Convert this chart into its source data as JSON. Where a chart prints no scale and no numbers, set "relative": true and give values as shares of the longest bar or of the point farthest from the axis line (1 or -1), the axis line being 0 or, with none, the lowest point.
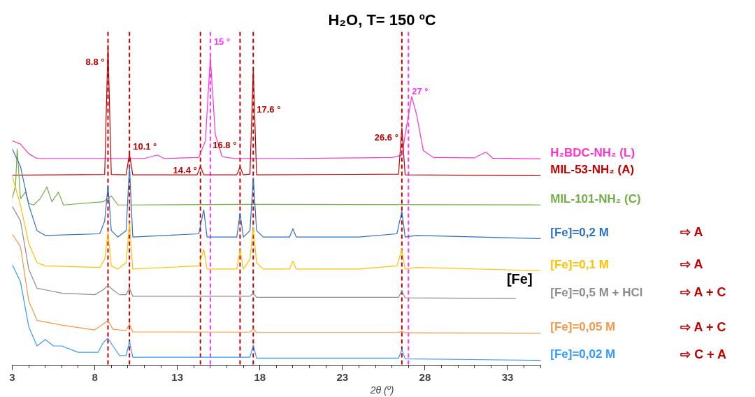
{
  "chart_data": {
    "type": "line",
    "title": "H₂O, T= 150 ºC",
    "xlabel": "2θ (º)",
    "relative": true,
    "xlim": [
      3,
      35
    ],
    "xticks": [
      3,
      8,
      13,
      18,
      23,
      28,
      33
    ],
    "grid": false,
    "tick_labels": "x",
    "marker": "none",
    "line_style": "solid",
    "series": [
      {
        "name": "H₂BDC-NH₂ (L)",
        "color": "#ff33cc",
        "x": [
          3,
          3.5,
          4,
          4.5,
          5,
          8,
          11,
          11.8,
          12.2,
          14.3,
          14.7,
          15,
          15.3,
          15.7,
          16,
          16.5,
          20,
          24,
          26,
          26.6,
          26.9,
          27.2,
          27.5,
          27.9,
          28.5,
          31,
          31.7,
          32.1,
          35
        ],
        "values": [
          0.7,
          0.69,
          0.66,
          0.645,
          0.645,
          0.645,
          0.645,
          0.656,
          0.645,
          0.648,
          0.7,
          0.961,
          0.72,
          0.652,
          0.648,
          0.645,
          0.645,
          0.647,
          0.648,
          0.655,
          0.75,
          0.838,
          0.78,
          0.67,
          0.648,
          0.647,
          0.665,
          0.646,
          0.644
        ]
      },
      {
        "name": "MIL-53-NH₂ (A)",
        "color": "#c00000",
        "x": [
          3,
          8.6,
          8.8,
          9.0,
          9.9,
          10.1,
          10.3,
          14.2,
          14.4,
          14.6,
          16.6,
          16.8,
          17.0,
          17.4,
          17.6,
          17.8,
          26.4,
          26.6,
          26.8,
          35
        ],
        "values": [
          0.593,
          0.595,
          1.0,
          0.595,
          0.594,
          0.66,
          0.594,
          0.594,
          0.621,
          0.594,
          0.594,
          0.619,
          0.594,
          0.596,
          0.922,
          0.594,
          0.596,
          0.74,
          0.594,
          0.591
        ]
      },
      {
        "name": "MIL-101-NH₂ (C)",
        "color": "#70ad47",
        "x": [
          3,
          3.2,
          3.3,
          3.5,
          3.8,
          4,
          4.3,
          4.7,
          5.1,
          5.4,
          5.8,
          6.1,
          8.5,
          9.0,
          9.4,
          10,
          17,
          35
        ],
        "values": [
          0.52,
          0.56,
          0.675,
          0.52,
          0.54,
          0.505,
          0.5,
          0.52,
          0.556,
          0.51,
          0.54,
          0.5,
          0.51,
          0.528,
          0.5,
          0.5,
          0.502,
          0.5
        ]
      },
      {
        "name": "[Fe]=0,2 M",
        "color": "#2e6fc4",
        "x": [
          3,
          3.5,
          4,
          4.5,
          5,
          8.3,
          8.6,
          8.8,
          9.0,
          9.4,
          9.9,
          10.1,
          10.3,
          14.3,
          14.6,
          14.8,
          16.6,
          16.8,
          17.0,
          17.4,
          17.6,
          17.8,
          18.2,
          19.8,
          20,
          20.2,
          24,
          26.3,
          26.6,
          26.8,
          27.5,
          35
        ],
        "values": [
          0.675,
          0.62,
          0.5,
          0.42,
          0.405,
          0.41,
          0.45,
          0.56,
          0.42,
          0.4,
          0.42,
          0.62,
          0.4,
          0.41,
          0.485,
          0.4,
          0.4,
          0.474,
          0.4,
          0.42,
          0.584,
          0.42,
          0.4,
          0.4,
          0.426,
          0.4,
          0.4,
          0.41,
          0.48,
          0.4,
          0.405,
          0.395
        ]
      },
      {
        "name": "[Fe]=0,1 M",
        "color": "#ffc000",
        "x": [
          3,
          3.5,
          4,
          4.5,
          5,
          8.3,
          8.6,
          8.8,
          9.0,
          9.4,
          9.9,
          10.1,
          10.3,
          14.3,
          14.6,
          14.8,
          16.6,
          16.8,
          17.0,
          17.4,
          17.6,
          17.8,
          18.2,
          19.8,
          20,
          20.2,
          24,
          26.3,
          26.6,
          26.8,
          27.5,
          35
        ],
        "values": [
          0.589,
          0.5,
          0.38,
          0.32,
          0.31,
          0.305,
          0.33,
          0.416,
          0.31,
          0.3,
          0.32,
          0.444,
          0.3,
          0.31,
          0.361,
          0.3,
          0.3,
          0.361,
          0.3,
          0.33,
          0.431,
          0.32,
          0.3,
          0.3,
          0.325,
          0.3,
          0.3,
          0.31,
          0.361,
          0.3,
          0.305,
          0.295
        ]
      },
      {
        "name": "[Fe]=0,5 M + HCl",
        "color": "#8c8c8c",
        "x": [
          3,
          3.5,
          4,
          4.5,
          5,
          6,
          8,
          8.5,
          8.8,
          9.1,
          9.5,
          9.9,
          10.1,
          10.3,
          14.6,
          17.4,
          17.6,
          17.8,
          26.4,
          26.6,
          26.8,
          33.5
        ],
        "values": [
          0.496,
          0.45,
          0.3,
          0.24,
          0.235,
          0.225,
          0.22,
          0.235,
          0.249,
          0.235,
          0.22,
          0.22,
          0.242,
          0.215,
          0.215,
          0.215,
          0.225,
          0.212,
          0.212,
          0.232,
          0.21,
          0.208
        ]
      },
      {
        "name": "[Fe]=0,05 M",
        "color": "#f79646",
        "x": [
          3,
          3.5,
          4,
          4.5,
          5,
          6,
          8,
          8.8,
          9.1,
          9.9,
          10.1,
          10.3,
          17.4,
          17.6,
          17.8,
          26.4,
          26.6,
          26.8,
          35
        ],
        "values": [
          0.409,
          0.37,
          0.2,
          0.14,
          0.135,
          0.125,
          0.11,
          0.139,
          0.112,
          0.108,
          0.13,
          0.104,
          0.103,
          0.113,
          0.102,
          0.102,
          0.106,
          0.101,
          0.1
        ]
      },
      {
        "name": "[Fe]=0,02 M",
        "color": "#3399ff",
        "x": [
          3,
          3.5,
          4,
          4.5,
          5,
          5.5,
          6,
          7,
          8.2,
          8.5,
          8.8,
          9.1,
          9.5,
          9.9,
          10.1,
          10.3,
          17.4,
          17.6,
          17.8,
          26.4,
          26.6,
          26.8,
          35
        ],
        "values": [
          0.314,
          0.26,
          0.12,
          0.06,
          0.08,
          0.06,
          0.06,
          0.04,
          0.04,
          0.07,
          0.084,
          0.06,
          0.03,
          0.03,
          0.074,
          0.025,
          0.025,
          0.063,
          0.022,
          0.022,
          0.048,
          0.02,
          0.015
        ]
      }
    ],
    "ref_lines": [
      {
        "axis": "x",
        "value": 8.8,
        "color": "#c00000",
        "line_style": "dashed"
      },
      {
        "axis": "x",
        "value": 10.1,
        "color": "#c00000",
        "line_style": "dashed"
      },
      {
        "axis": "x",
        "value": 14.4,
        "color": "#c00000",
        "line_style": "dashed"
      },
      {
        "axis": "x",
        "value": 16.8,
        "color": "#c00000",
        "line_style": "dashed"
      },
      {
        "axis": "x",
        "value": 17.6,
        "color": "#c00000",
        "line_style": "dashed"
      },
      {
        "axis": "x",
        "value": 26.6,
        "color": "#c00000",
        "line_style": "dashed"
      },
      {
        "axis": "x",
        "value": 15,
        "color": "#ff33ff",
        "line_style": "dashed"
      },
      {
        "axis": "x",
        "value": 27,
        "color": "#ff33ff",
        "line_style": "dashed"
      }
    ],
    "annotations": [
      {
        "text": "8.8 °",
        "x": 8.8,
        "y": 0.946
      },
      {
        "text": "10.1 °",
        "x": 10.1,
        "y": 0.682
      },
      {
        "text": "14.4 °",
        "x": 14.4,
        "y": 0.608
      },
      {
        "text": "15 °",
        "x": 15,
        "y": 1.01
      },
      {
        "text": "16.8 °",
        "x": 16.8,
        "y": 0.686
      },
      {
        "text": "17.6 °",
        "x": 17.6,
        "y": 0.799
      },
      {
        "text": "26.6 °",
        "x": 26.6,
        "y": 0.712
      },
      {
        "text": "27 °",
        "x": 27,
        "y": 0.855
      },
      "⇨  A",
      "⇨  A",
      "⇨  A + C",
      "⇨  A + C",
      "⇨  C + A",
      "[Fe]"
    ]
  }
}
